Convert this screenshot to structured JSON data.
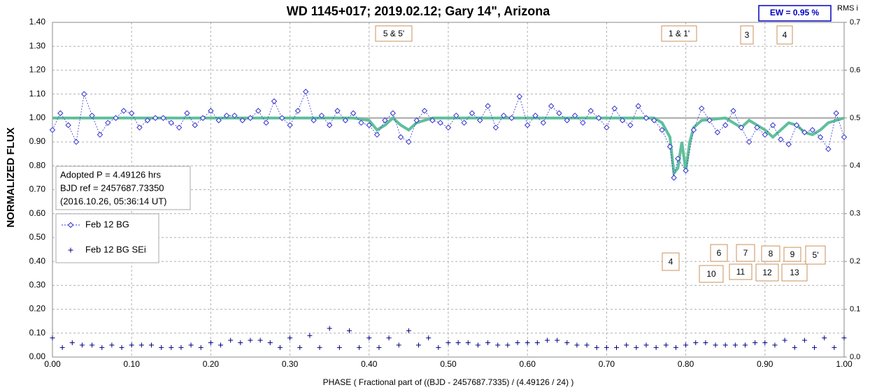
{
  "chart_data": {
    "type": "scatter",
    "title": "WD 1145+017; 2019.02.12; Gary 14\", Arizona",
    "x_label": "PHASE ( Fractional part of ((BJD - 2457687.7335) / (4.49126 / 24) )",
    "y_label": "NORMALIZED FLUX",
    "y2_label": "RMS i",
    "ew_label": "EW =  0.95 %",
    "info_lines": [
      "Adopted P = 4.49126 hrs",
      "BJD ref = 2457687.73350",
      "(2016.10.26, 05:36:14 UT)"
    ],
    "annotations": [
      "5 & 5'",
      "1 & 1'",
      "3",
      "4",
      "4",
      "6",
      "7",
      "8",
      "9",
      "5'",
      "10",
      "11",
      "12",
      "13"
    ],
    "xlim": [
      0,
      1
    ],
    "xticks": [
      {
        "value": 0,
        "label": "0.00"
      },
      {
        "value": 0.1,
        "label": "0.10"
      },
      {
        "value": 0.2,
        "label": "0.20"
      },
      {
        "value": 0.3,
        "label": "0.30"
      },
      {
        "value": 0.4,
        "label": "0.40"
      },
      {
        "value": 0.5,
        "label": "0.50"
      },
      {
        "value": 0.6,
        "label": "0.60"
      },
      {
        "value": 0.7,
        "label": "0.70"
      },
      {
        "value": 0.8,
        "label": "0.80"
      },
      {
        "value": 0.9,
        "label": "0.90"
      },
      {
        "value": 1,
        "label": "1.00"
      }
    ],
    "ylim": [
      0,
      1.4
    ],
    "yticks": [
      {
        "value": 0,
        "label": "0.00"
      },
      {
        "value": 0.1,
        "label": "0.10"
      },
      {
        "value": 0.2,
        "label": "0.20"
      },
      {
        "value": 0.3,
        "label": "0.30"
      },
      {
        "value": 0.4,
        "label": "0.40"
      },
      {
        "value": 0.5,
        "label": "0.50"
      },
      {
        "value": 0.6,
        "label": "0.60"
      },
      {
        "value": 0.7,
        "label": "0.70"
      },
      {
        "value": 0.8,
        "label": "0.80"
      },
      {
        "value": 0.9,
        "label": "0.90"
      },
      {
        "value": 1,
        "label": "1.00"
      },
      {
        "value": 1.1,
        "label": "1.10"
      },
      {
        "value": 1.2,
        "label": "1.20"
      },
      {
        "value": 1.3,
        "label": "1.30"
      },
      {
        "value": 1.4,
        "label": "1.40"
      }
    ],
    "y2lim": [
      0,
      0.7
    ],
    "y2ticks": [
      {
        "value": 0,
        "label": "0.0"
      },
      0.1,
      0.2,
      0.3,
      0.4,
      0.5,
      0.6,
      0.7
    ],
    "grid": true,
    "reference_line": {
      "value": 1,
      "color": "#b4b4b4"
    },
    "series": [
      {
        "name": "Feb 12 BG",
        "color": "#3333cc",
        "marker": "diamond",
        "line": "dashed",
        "x": [
          0,
          0.01,
          0.02,
          0.03,
          0.04,
          0.05,
          0.06,
          0.07,
          0.08,
          0.09,
          0.1,
          0.11,
          0.12,
          0.13,
          0.14,
          0.15,
          0.16,
          0.17,
          0.18,
          0.19,
          0.2,
          0.21,
          0.22,
          0.23,
          0.24,
          0.25,
          0.26,
          0.27,
          0.28,
          0.29,
          0.3,
          0.31,
          0.32,
          0.33,
          0.34,
          0.35,
          0.36,
          0.37,
          0.38,
          0.39,
          0.4,
          0.41,
          0.42,
          0.43,
          0.44,
          0.45,
          0.46,
          0.47,
          0.48,
          0.49,
          0.5,
          0.51,
          0.52,
          0.53,
          0.54,
          0.55,
          0.56,
          0.57,
          0.58,
          0.59,
          0.6,
          0.61,
          0.62,
          0.63,
          0.64,
          0.65,
          0.66,
          0.67,
          0.68,
          0.69,
          0.7,
          0.71,
          0.72,
          0.73,
          0.74,
          0.75,
          0.76,
          0.77,
          0.78,
          0.785,
          0.79,
          0.8,
          0.81,
          0.82,
          0.83,
          0.84,
          0.85,
          0.86,
          0.87,
          0.88,
          0.89,
          0.9,
          0.91,
          0.92,
          0.93,
          0.94,
          0.95,
          0.96,
          0.97,
          0.98,
          0.99,
          1
        ],
        "values": [
          0.95,
          1.02,
          0.97,
          0.9,
          1.1,
          1.01,
          0.93,
          0.98,
          1,
          1.03,
          1.02,
          0.96,
          0.99,
          1,
          1,
          0.98,
          0.96,
          1.02,
          0.97,
          1,
          1.03,
          0.99,
          1.01,
          1.01,
          0.99,
          1,
          1.03,
          0.98,
          1.07,
          1,
          0.97,
          1.03,
          1.11,
          0.99,
          1.01,
          0.97,
          1.03,
          0.99,
          1.02,
          0.98,
          0.97,
          0.93,
          0.99,
          1.02,
          0.92,
          0.9,
          0.99,
          1.03,
          0.99,
          0.98,
          0.96,
          1.01,
          0.98,
          1.02,
          0.99,
          1.05,
          0.96,
          1.01,
          1,
          1.09,
          0.97,
          1.01,
          0.98,
          1.05,
          1.02,
          0.99,
          1.01,
          0.98,
          1.03,
          1,
          0.96,
          1.04,
          0.99,
          0.97,
          1.05,
          1,
          0.99,
          0.95,
          0.88,
          0.75,
          0.83,
          0.78,
          0.95,
          1.04,
          0.99,
          0.94,
          0.97,
          1.03,
          0.96,
          0.9,
          0.96,
          0.93,
          0.97,
          0.91,
          0.89,
          0.97,
          0.94,
          0.95,
          0.92,
          0.87,
          1.02,
          0.92
        ]
      },
      {
        "name": "Feb 12 BG SEi",
        "color": "#000080",
        "marker": "plus",
        "line": "none",
        "x": [
          0,
          0.0125,
          0.025,
          0.0375,
          0.05,
          0.0625,
          0.075,
          0.0875,
          0.1,
          0.1125,
          0.125,
          0.1375,
          0.15,
          0.1625,
          0.175,
          0.1875,
          0.2,
          0.2125,
          0.225,
          0.2375,
          0.25,
          0.2625,
          0.275,
          0.2875,
          0.3,
          0.3125,
          0.325,
          0.3375,
          0.35,
          0.3625,
          0.375,
          0.3875,
          0.4,
          0.4125,
          0.425,
          0.4375,
          0.45,
          0.4625,
          0.475,
          0.4875,
          0.5,
          0.5125,
          0.525,
          0.5375,
          0.55,
          0.5625,
          0.575,
          0.5875,
          0.6,
          0.6125,
          0.625,
          0.6375,
          0.65,
          0.6625,
          0.675,
          0.6875,
          0.7,
          0.7125,
          0.725,
          0.7375,
          0.75,
          0.7625,
          0.775,
          0.7875,
          0.8,
          0.8125,
          0.825,
          0.8375,
          0.85,
          0.8625,
          0.875,
          0.8875,
          0.9,
          0.9125,
          0.925,
          0.9375,
          0.95,
          0.9625,
          0.975,
          0.9875,
          1
        ],
        "values": [
          0.08,
          0.04,
          0.06,
          0.05,
          0.05,
          0.04,
          0.05,
          0.04,
          0.05,
          0.05,
          0.05,
          0.04,
          0.04,
          0.04,
          0.05,
          0.04,
          0.06,
          0.05,
          0.07,
          0.06,
          0.07,
          0.07,
          0.06,
          0.04,
          0.08,
          0.04,
          0.09,
          0.04,
          0.12,
          0.04,
          0.11,
          0.04,
          0.08,
          0.04,
          0.08,
          0.05,
          0.11,
          0.05,
          0.08,
          0.04,
          0.06,
          0.06,
          0.06,
          0.05,
          0.06,
          0.05,
          0.05,
          0.06,
          0.06,
          0.06,
          0.07,
          0.07,
          0.06,
          0.05,
          0.05,
          0.04,
          0.04,
          0.04,
          0.05,
          0.04,
          0.05,
          0.04,
          0.05,
          0.04,
          0.05,
          0.06,
          0.06,
          0.05,
          0.05,
          0.05,
          0.05,
          0.06,
          0.06,
          0.05,
          0.07,
          0.04,
          0.07,
          0.04,
          0.08,
          0.04,
          0.08
        ]
      },
      {
        "color": "#5fbf9c",
        "marker": "none",
        "line": "solid",
        "x": [
          0,
          0.38,
          0.4,
          0.41,
          0.42,
          0.43,
          0.44,
          0.45,
          0.46,
          0.48,
          0.76,
          0.77,
          0.78,
          0.785,
          0.79,
          0.795,
          0.8,
          0.805,
          0.81,
          0.82,
          0.85,
          0.86,
          0.87,
          0.88,
          0.9,
          0.91,
          0.92,
          0.93,
          0.94,
          0.95,
          0.96,
          0.97,
          0.98,
          1
        ],
        "values": [
          1,
          1,
          0.99,
          0.95,
          0.97,
          1,
          0.97,
          0.95,
          0.98,
          1,
          1,
          0.98,
          0.92,
          0.77,
          0.79,
          0.9,
          0.78,
          0.9,
          0.96,
          0.99,
          1,
          0.98,
          0.96,
          0.99,
          0.95,
          0.92,
          0.95,
          0.98,
          0.97,
          0.94,
          0.93,
          0.95,
          0.98,
          1
        ]
      }
    ]
  }
}
